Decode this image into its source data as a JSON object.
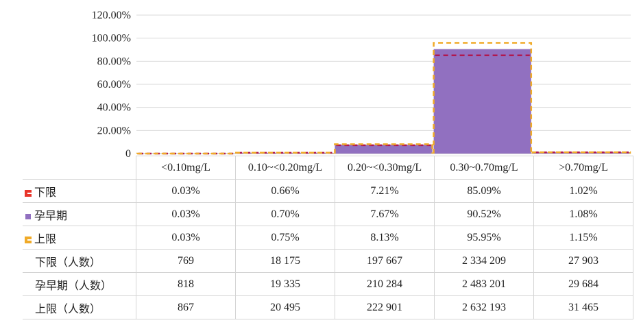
{
  "chart_data": {
    "type": "bar",
    "categories": [
      "<0.10mg/L",
      "0.10~<0.20mg/L",
      "0.20~<0.30mg/L",
      "0.30~0.70mg/L",
      ">0.70mg/L"
    ],
    "y_ticks": [
      "0",
      "20.00%",
      "40.00%",
      "60.00%",
      "80.00%",
      "100.00%",
      "120.00%"
    ],
    "ylim": [
      0,
      120
    ],
    "grid": true,
    "series": [
      {
        "name": "下限",
        "values": [
          0.03,
          0.66,
          7.21,
          85.09,
          1.02
        ],
        "labels": [
          "0.03%",
          "0.66%",
          "7.21%",
          "85.09%",
          "1.02%"
        ],
        "style": "dashed-outline",
        "color": "#b0184f"
      },
      {
        "name": "孕早期",
        "values": [
          0.03,
          0.7,
          7.67,
          90.52,
          1.08
        ],
        "labels": [
          "0.03%",
          "0.70%",
          "7.67%",
          "90.52%",
          "1.08%"
        ],
        "style": "filled",
        "color": "#9170c0"
      },
      {
        "name": "上限",
        "values": [
          0.03,
          0.75,
          8.13,
          95.95,
          1.15
        ],
        "labels": [
          "0.03%",
          "0.75%",
          "8.13%",
          "95.95%",
          "1.15%"
        ],
        "style": "dashed-outline",
        "color": "#f0aa28"
      }
    ],
    "count_rows": [
      {
        "name": "下限（人数）",
        "values": [
          "769",
          "18 175",
          "197 667",
          "2 334 209",
          "27 903"
        ]
      },
      {
        "name": "孕早期（人数）",
        "values": [
          "818",
          "19 335",
          "210 284",
          "2 483 201",
          "29 684"
        ]
      },
      {
        "name": "上限（人数）",
        "values": [
          "867",
          "20 495",
          "222 901",
          "2 632 193",
          "31 465"
        ]
      }
    ]
  },
  "legend_icons": [
    "red-bracket-icon",
    "purple-square-icon",
    "orange-bracket-icon"
  ]
}
